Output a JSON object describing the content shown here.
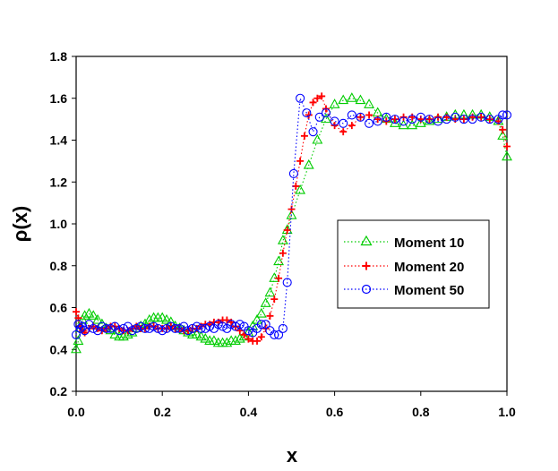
{
  "chart_data": {
    "type": "scatter",
    "title": "",
    "xlabel": "x",
    "ylabel": "ρ(x)",
    "xlim": [
      0.0,
      1.0
    ],
    "ylim": [
      0.2,
      1.8
    ],
    "xticks": [
      "0.0",
      "0.2",
      "0.4",
      "0.6",
      "0.8",
      "1.0"
    ],
    "yticks": [
      "0.2",
      "0.4",
      "0.6",
      "0.8",
      "1.0",
      "1.2",
      "1.4",
      "1.6",
      "1.8"
    ],
    "legend_position": "center-right",
    "series": [
      {
        "name": "Moment 10",
        "color": "#00cc00",
        "marker": "triangle",
        "line": "dotted",
        "points": [
          [
            0.0,
            0.4
          ],
          [
            0.005,
            0.44
          ],
          [
            0.01,
            0.5
          ],
          [
            0.015,
            0.54
          ],
          [
            0.02,
            0.56
          ],
          [
            0.03,
            0.57
          ],
          [
            0.04,
            0.56
          ],
          [
            0.05,
            0.54
          ],
          [
            0.06,
            0.52
          ],
          [
            0.07,
            0.5
          ],
          [
            0.08,
            0.49
          ],
          [
            0.09,
            0.47
          ],
          [
            0.1,
            0.46
          ],
          [
            0.11,
            0.46
          ],
          [
            0.12,
            0.47
          ],
          [
            0.13,
            0.48
          ],
          [
            0.14,
            0.5
          ],
          [
            0.15,
            0.51
          ],
          [
            0.16,
            0.52
          ],
          [
            0.17,
            0.54
          ],
          [
            0.18,
            0.55
          ],
          [
            0.19,
            0.55
          ],
          [
            0.2,
            0.55
          ],
          [
            0.21,
            0.54
          ],
          [
            0.22,
            0.53
          ],
          [
            0.23,
            0.51
          ],
          [
            0.24,
            0.5
          ],
          [
            0.25,
            0.49
          ],
          [
            0.26,
            0.48
          ],
          [
            0.27,
            0.47
          ],
          [
            0.28,
            0.47
          ],
          [
            0.29,
            0.46
          ],
          [
            0.3,
            0.45
          ],
          [
            0.31,
            0.44
          ],
          [
            0.32,
            0.44
          ],
          [
            0.33,
            0.43
          ],
          [
            0.34,
            0.43
          ],
          [
            0.35,
            0.43
          ],
          [
            0.36,
            0.44
          ],
          [
            0.37,
            0.44
          ],
          [
            0.38,
            0.45
          ],
          [
            0.39,
            0.46
          ],
          [
            0.4,
            0.48
          ],
          [
            0.41,
            0.51
          ],
          [
            0.42,
            0.54
          ],
          [
            0.43,
            0.57
          ],
          [
            0.44,
            0.62
          ],
          [
            0.45,
            0.67
          ],
          [
            0.46,
            0.74
          ],
          [
            0.47,
            0.82
          ],
          [
            0.48,
            0.92
          ],
          [
            0.49,
            0.97
          ],
          [
            0.5,
            1.04
          ],
          [
            0.52,
            1.16
          ],
          [
            0.54,
            1.28
          ],
          [
            0.56,
            1.4
          ],
          [
            0.58,
            1.5
          ],
          [
            0.6,
            1.57
          ],
          [
            0.62,
            1.59
          ],
          [
            0.64,
            1.6
          ],
          [
            0.66,
            1.59
          ],
          [
            0.68,
            1.57
          ],
          [
            0.7,
            1.53
          ],
          [
            0.72,
            1.5
          ],
          [
            0.74,
            1.48
          ],
          [
            0.76,
            1.47
          ],
          [
            0.78,
            1.47
          ],
          [
            0.8,
            1.48
          ],
          [
            0.82,
            1.49
          ],
          [
            0.84,
            1.5
          ],
          [
            0.86,
            1.51
          ],
          [
            0.88,
            1.52
          ],
          [
            0.9,
            1.52
          ],
          [
            0.92,
            1.52
          ],
          [
            0.94,
            1.52
          ],
          [
            0.96,
            1.51
          ],
          [
            0.98,
            1.49
          ],
          [
            0.99,
            1.42
          ],
          [
            1.0,
            1.32
          ]
        ]
      },
      {
        "name": "Moment 20",
        "color": "#ff0000",
        "marker": "plus",
        "line": "dotted",
        "points": [
          [
            0.0,
            0.58
          ],
          [
            0.005,
            0.55
          ],
          [
            0.01,
            0.51
          ],
          [
            0.015,
            0.49
          ],
          [
            0.02,
            0.48
          ],
          [
            0.03,
            0.5
          ],
          [
            0.04,
            0.51
          ],
          [
            0.05,
            0.5
          ],
          [
            0.06,
            0.49
          ],
          [
            0.07,
            0.5
          ],
          [
            0.08,
            0.51
          ],
          [
            0.09,
            0.51
          ],
          [
            0.1,
            0.5
          ],
          [
            0.11,
            0.49
          ],
          [
            0.12,
            0.49
          ],
          [
            0.13,
            0.5
          ],
          [
            0.14,
            0.51
          ],
          [
            0.15,
            0.5
          ],
          [
            0.16,
            0.5
          ],
          [
            0.17,
            0.51
          ],
          [
            0.18,
            0.51
          ],
          [
            0.19,
            0.5
          ],
          [
            0.2,
            0.5
          ],
          [
            0.21,
            0.5
          ],
          [
            0.22,
            0.51
          ],
          [
            0.23,
            0.5
          ],
          [
            0.24,
            0.5
          ],
          [
            0.25,
            0.49
          ],
          [
            0.26,
            0.49
          ],
          [
            0.27,
            0.5
          ],
          [
            0.28,
            0.5
          ],
          [
            0.29,
            0.51
          ],
          [
            0.3,
            0.52
          ],
          [
            0.31,
            0.52
          ],
          [
            0.32,
            0.53
          ],
          [
            0.33,
            0.53
          ],
          [
            0.34,
            0.54
          ],
          [
            0.35,
            0.54
          ],
          [
            0.36,
            0.53
          ],
          [
            0.37,
            0.51
          ],
          [
            0.38,
            0.49
          ],
          [
            0.39,
            0.47
          ],
          [
            0.4,
            0.45
          ],
          [
            0.41,
            0.44
          ],
          [
            0.42,
            0.44
          ],
          [
            0.43,
            0.46
          ],
          [
            0.44,
            0.5
          ],
          [
            0.45,
            0.56
          ],
          [
            0.46,
            0.64
          ],
          [
            0.47,
            0.74
          ],
          [
            0.48,
            0.86
          ],
          [
            0.49,
            0.97
          ],
          [
            0.5,
            1.07
          ],
          [
            0.51,
            1.18
          ],
          [
            0.52,
            1.3
          ],
          [
            0.53,
            1.42
          ],
          [
            0.54,
            1.52
          ],
          [
            0.55,
            1.58
          ],
          [
            0.56,
            1.6
          ],
          [
            0.57,
            1.61
          ],
          [
            0.58,
            1.55
          ],
          [
            0.6,
            1.47
          ],
          [
            0.62,
            1.44
          ],
          [
            0.64,
            1.47
          ],
          [
            0.66,
            1.51
          ],
          [
            0.68,
            1.52
          ],
          [
            0.7,
            1.5
          ],
          [
            0.72,
            1.49
          ],
          [
            0.74,
            1.5
          ],
          [
            0.76,
            1.51
          ],
          [
            0.78,
            1.51
          ],
          [
            0.8,
            1.5
          ],
          [
            0.82,
            1.5
          ],
          [
            0.84,
            1.51
          ],
          [
            0.86,
            1.51
          ],
          [
            0.88,
            1.5
          ],
          [
            0.9,
            1.5
          ],
          [
            0.92,
            1.51
          ],
          [
            0.94,
            1.51
          ],
          [
            0.96,
            1.5
          ],
          [
            0.98,
            1.49
          ],
          [
            0.99,
            1.45
          ],
          [
            1.0,
            1.37
          ]
        ]
      },
      {
        "name": "Moment 50",
        "color": "#0000ff",
        "marker": "circle",
        "line": "dotted",
        "points": [
          [
            0.0,
            0.47
          ],
          [
            0.005,
            0.52
          ],
          [
            0.01,
            0.5
          ],
          [
            0.015,
            0.51
          ],
          [
            0.02,
            0.49
          ],
          [
            0.03,
            0.52
          ],
          [
            0.04,
            0.5
          ],
          [
            0.05,
            0.49
          ],
          [
            0.06,
            0.51
          ],
          [
            0.07,
            0.5
          ],
          [
            0.08,
            0.5
          ],
          [
            0.09,
            0.51
          ],
          [
            0.1,
            0.49
          ],
          [
            0.11,
            0.5
          ],
          [
            0.12,
            0.51
          ],
          [
            0.13,
            0.49
          ],
          [
            0.14,
            0.5
          ],
          [
            0.15,
            0.51
          ],
          [
            0.16,
            0.5
          ],
          [
            0.17,
            0.5
          ],
          [
            0.18,
            0.51
          ],
          [
            0.19,
            0.5
          ],
          [
            0.2,
            0.49
          ],
          [
            0.21,
            0.5
          ],
          [
            0.22,
            0.51
          ],
          [
            0.23,
            0.5
          ],
          [
            0.24,
            0.5
          ],
          [
            0.25,
            0.51
          ],
          [
            0.26,
            0.49
          ],
          [
            0.27,
            0.5
          ],
          [
            0.28,
            0.51
          ],
          [
            0.29,
            0.5
          ],
          [
            0.3,
            0.5
          ],
          [
            0.31,
            0.51
          ],
          [
            0.32,
            0.5
          ],
          [
            0.33,
            0.52
          ],
          [
            0.34,
            0.51
          ],
          [
            0.35,
            0.5
          ],
          [
            0.36,
            0.52
          ],
          [
            0.37,
            0.51
          ],
          [
            0.38,
            0.52
          ],
          [
            0.39,
            0.51
          ],
          [
            0.4,
            0.49
          ],
          [
            0.41,
            0.48
          ],
          [
            0.42,
            0.5
          ],
          [
            0.43,
            0.52
          ],
          [
            0.44,
            0.52
          ],
          [
            0.45,
            0.49
          ],
          [
            0.46,
            0.47
          ],
          [
            0.47,
            0.47
          ],
          [
            0.48,
            0.5
          ],
          [
            0.49,
            0.72
          ],
          [
            0.505,
            1.24
          ],
          [
            0.52,
            1.6
          ],
          [
            0.535,
            1.53
          ],
          [
            0.55,
            1.44
          ],
          [
            0.565,
            1.51
          ],
          [
            0.58,
            1.53
          ],
          [
            0.6,
            1.49
          ],
          [
            0.62,
            1.48
          ],
          [
            0.64,
            1.52
          ],
          [
            0.66,
            1.51
          ],
          [
            0.68,
            1.48
          ],
          [
            0.7,
            1.49
          ],
          [
            0.72,
            1.51
          ],
          [
            0.74,
            1.5
          ],
          [
            0.76,
            1.49
          ],
          [
            0.78,
            1.5
          ],
          [
            0.8,
            1.51
          ],
          [
            0.82,
            1.5
          ],
          [
            0.84,
            1.49
          ],
          [
            0.86,
            1.5
          ],
          [
            0.88,
            1.51
          ],
          [
            0.9,
            1.5
          ],
          [
            0.92,
            1.5
          ],
          [
            0.94,
            1.51
          ],
          [
            0.96,
            1.5
          ],
          [
            0.98,
            1.5
          ],
          [
            0.99,
            1.52
          ],
          [
            1.0,
            1.52
          ]
        ]
      }
    ]
  }
}
